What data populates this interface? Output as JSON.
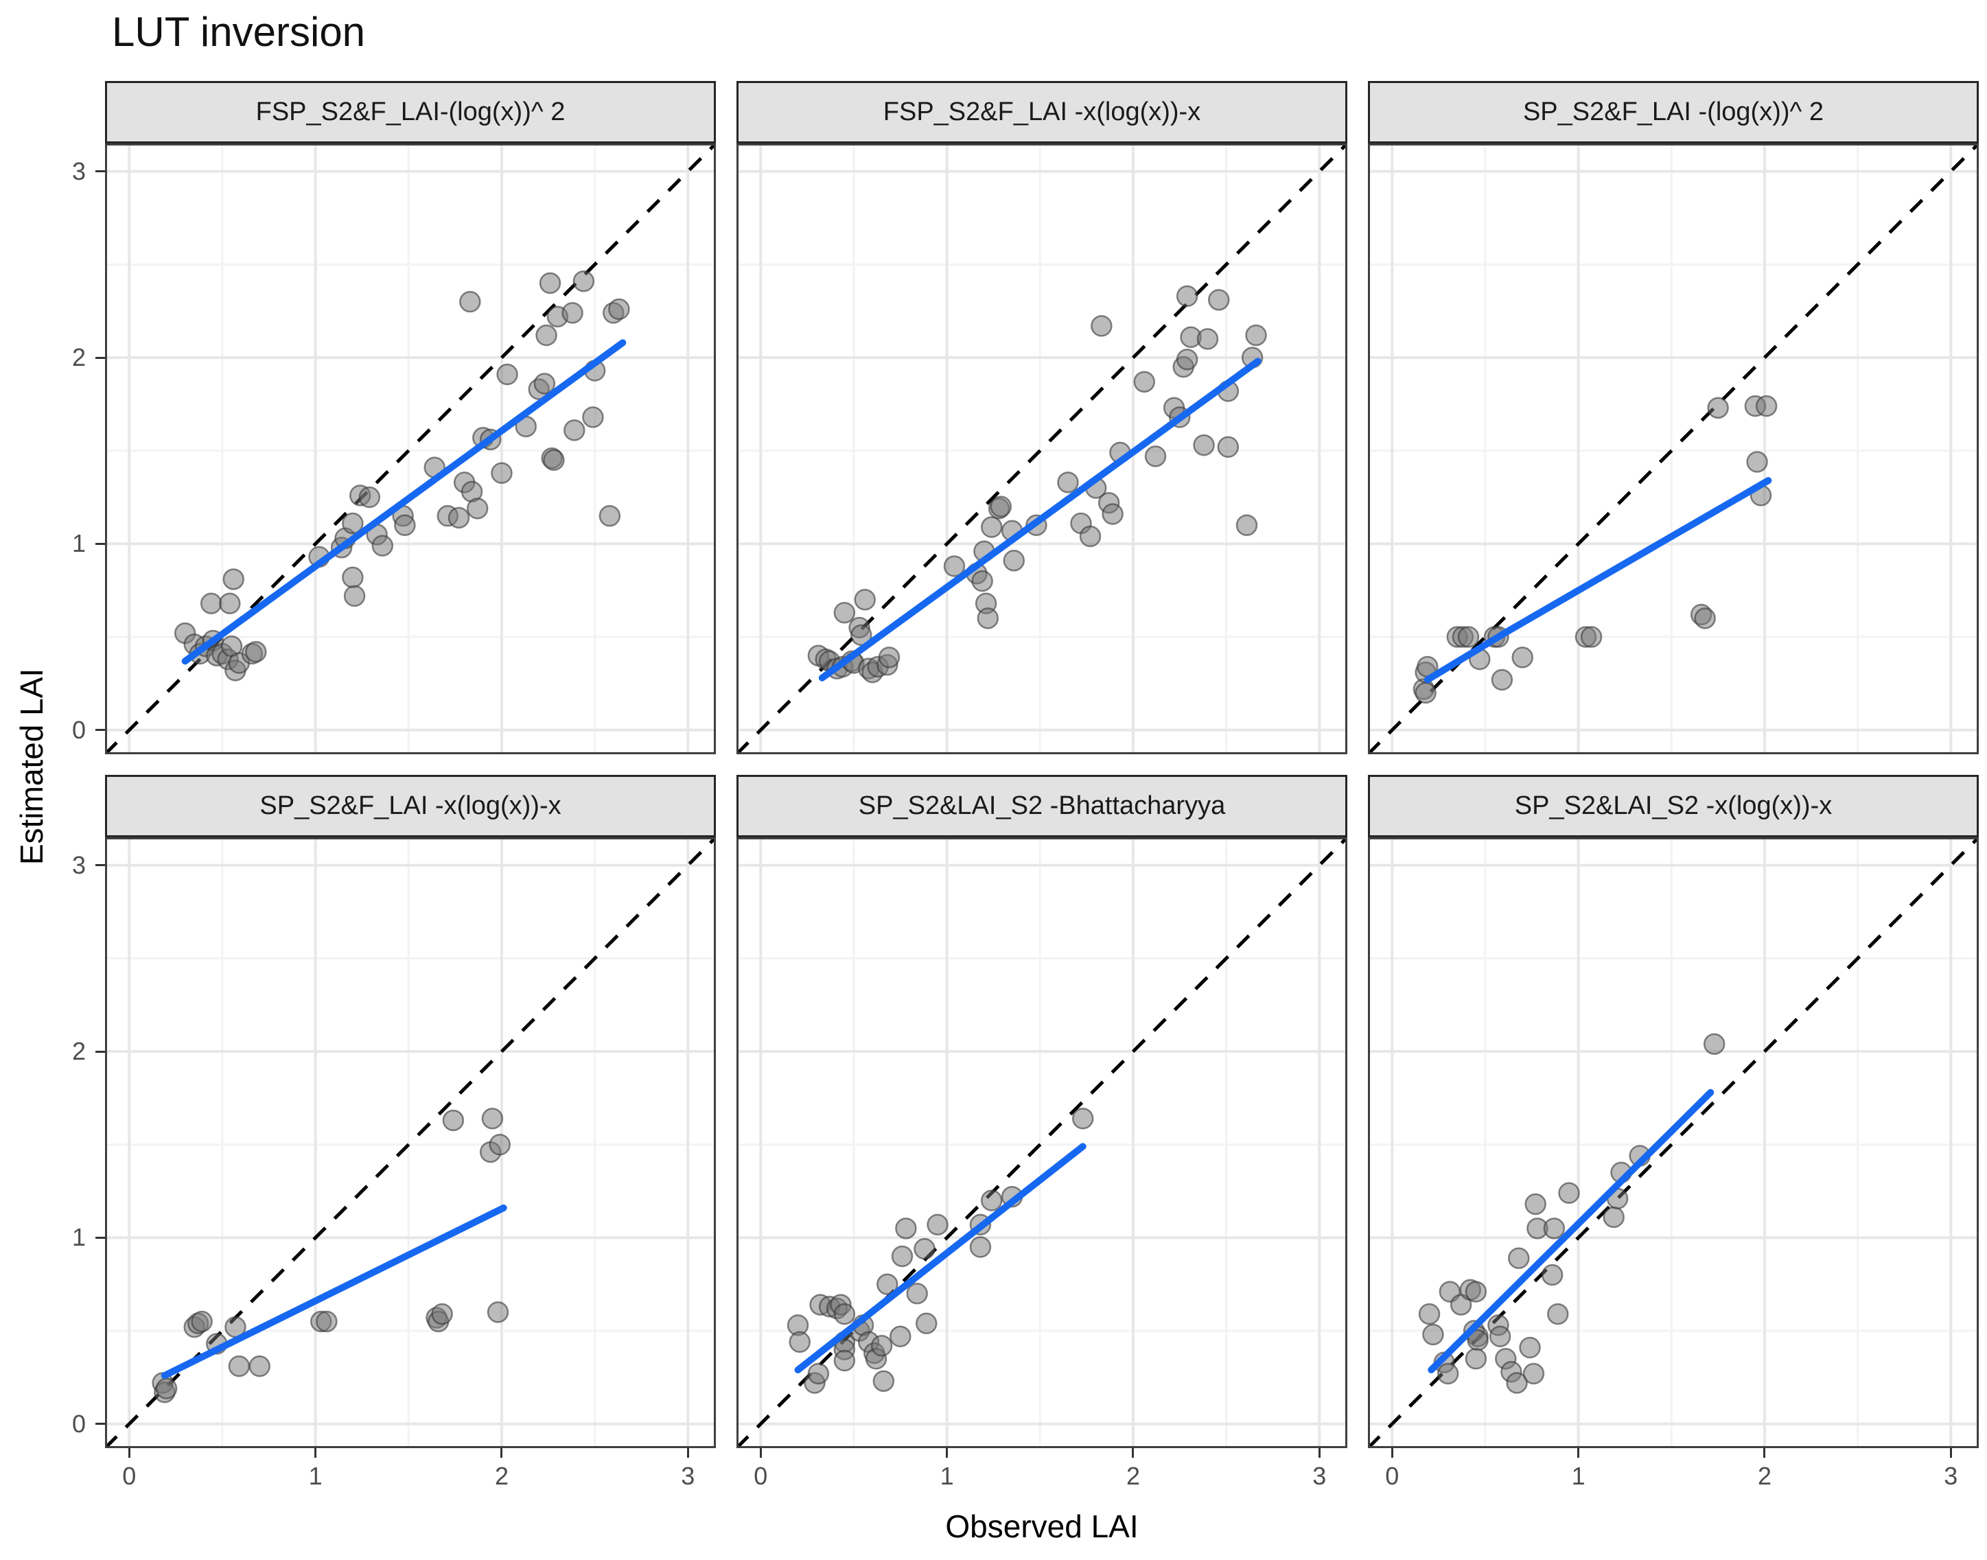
{
  "title": "LUT inversion",
  "axes": {
    "x_label": "Observed LAI",
    "y_label": "Estimated LAI",
    "x_ticks": [
      "0",
      "1",
      "2",
      "3"
    ],
    "y_ticks": [
      "0",
      "1",
      "2",
      "3"
    ],
    "major_breaks": [
      0,
      1,
      2,
      3
    ],
    "minor_breaks": [
      0.5,
      1.5,
      2.5
    ],
    "domain": [
      -0.13,
      3.15
    ]
  },
  "colors": {
    "trend": "#1668f0",
    "identity": "#000000",
    "point_fill": "#787878",
    "point_stroke": "#373737",
    "grid_major": "#e7e7e7",
    "grid_minor": "#f3f3f3",
    "strip_bg": "#e2e2e2",
    "panel_border": "#3f3f3f",
    "axis_text": "#4d4d4d"
  },
  "chart_data": [
    {
      "type": "scatter",
      "title": "FSP_S2&F_LAI-(log(x))^ 2",
      "xlim": [
        0,
        3
      ],
      "ylim": [
        0,
        3
      ],
      "identity_line": true,
      "trend": [
        [
          0.3,
          0.37
        ],
        [
          2.65,
          2.08
        ]
      ],
      "points": [
        [
          0.3,
          0.52
        ],
        [
          0.35,
          0.46
        ],
        [
          0.38,
          0.41
        ],
        [
          0.41,
          0.45
        ],
        [
          0.45,
          0.48
        ],
        [
          0.47,
          0.4
        ],
        [
          0.5,
          0.41
        ],
        [
          0.53,
          0.38
        ],
        [
          0.55,
          0.45
        ],
        [
          0.57,
          0.32
        ],
        [
          0.59,
          0.36
        ],
        [
          0.66,
          0.41
        ],
        [
          0.68,
          0.42
        ],
        [
          0.44,
          0.68
        ],
        [
          0.54,
          0.68
        ],
        [
          0.56,
          0.81
        ],
        [
          1.02,
          0.93
        ],
        [
          1.14,
          0.98
        ],
        [
          1.16,
          1.03
        ],
        [
          1.2,
          1.11
        ],
        [
          1.2,
          0.82
        ],
        [
          1.21,
          0.72
        ],
        [
          1.24,
          1.26
        ],
        [
          1.29,
          1.25
        ],
        [
          1.33,
          1.05
        ],
        [
          1.36,
          0.99
        ],
        [
          1.47,
          1.15
        ],
        [
          1.48,
          1.1
        ],
        [
          1.64,
          1.41
        ],
        [
          1.71,
          1.15
        ],
        [
          1.77,
          1.14
        ],
        [
          1.8,
          1.33
        ],
        [
          1.83,
          2.3
        ],
        [
          1.84,
          1.28
        ],
        [
          1.87,
          1.19
        ],
        [
          1.9,
          1.57
        ],
        [
          1.94,
          1.56
        ],
        [
          2.0,
          1.38
        ],
        [
          2.03,
          1.91
        ],
        [
          2.13,
          1.63
        ],
        [
          2.2,
          1.83
        ],
        [
          2.23,
          1.86
        ],
        [
          2.24,
          2.12
        ],
        [
          2.26,
          2.4
        ],
        [
          2.27,
          1.46
        ],
        [
          2.28,
          1.45
        ],
        [
          2.3,
          2.22
        ],
        [
          2.38,
          2.24
        ],
        [
          2.39,
          1.61
        ],
        [
          2.44,
          2.41
        ],
        [
          2.49,
          1.68
        ],
        [
          2.5,
          1.93
        ],
        [
          2.58,
          1.15
        ],
        [
          2.6,
          2.24
        ],
        [
          2.63,
          2.26
        ]
      ]
    },
    {
      "type": "scatter",
      "title": "FSP_S2&F_LAI -x(log(x))-x",
      "xlim": [
        0,
        3
      ],
      "ylim": [
        0,
        3
      ],
      "identity_line": true,
      "trend": [
        [
          0.33,
          0.28
        ],
        [
          2.67,
          1.98
        ]
      ],
      "points": [
        [
          0.31,
          0.4
        ],
        [
          0.35,
          0.38
        ],
        [
          0.37,
          0.37
        ],
        [
          0.41,
          0.33
        ],
        [
          0.44,
          0.34
        ],
        [
          0.45,
          0.63
        ],
        [
          0.49,
          0.37
        ],
        [
          0.5,
          0.36
        ],
        [
          0.53,
          0.55
        ],
        [
          0.54,
          0.51
        ],
        [
          0.56,
          0.7
        ],
        [
          0.58,
          0.33
        ],
        [
          0.6,
          0.31
        ],
        [
          0.63,
          0.34
        ],
        [
          0.68,
          0.35
        ],
        [
          0.69,
          0.39
        ],
        [
          1.04,
          0.88
        ],
        [
          1.16,
          0.84
        ],
        [
          1.19,
          0.8
        ],
        [
          1.2,
          0.96
        ],
        [
          1.21,
          0.68
        ],
        [
          1.22,
          0.6
        ],
        [
          1.24,
          1.09
        ],
        [
          1.28,
          1.19
        ],
        [
          1.29,
          1.2
        ],
        [
          1.35,
          1.07
        ],
        [
          1.36,
          0.91
        ],
        [
          1.48,
          1.1
        ],
        [
          1.65,
          1.33
        ],
        [
          1.72,
          1.11
        ],
        [
          1.77,
          1.04
        ],
        [
          1.8,
          1.3
        ],
        [
          1.83,
          2.17
        ],
        [
          1.87,
          1.22
        ],
        [
          1.89,
          1.16
        ],
        [
          1.93,
          1.49
        ],
        [
          2.06,
          1.87
        ],
        [
          2.12,
          1.47
        ],
        [
          2.22,
          1.73
        ],
        [
          2.25,
          1.68
        ],
        [
          2.27,
          1.95
        ],
        [
          2.29,
          2.33
        ],
        [
          2.29,
          1.99
        ],
        [
          2.31,
          2.11
        ],
        [
          2.4,
          2.1
        ],
        [
          2.38,
          1.53
        ],
        [
          2.46,
          2.31
        ],
        [
          2.51,
          1.52
        ],
        [
          2.51,
          1.82
        ],
        [
          2.61,
          1.1
        ],
        [
          2.64,
          2.0
        ],
        [
          2.66,
          2.12
        ]
      ]
    },
    {
      "type": "scatter",
      "title": "SP_S2&F_LAI -(log(x))^ 2",
      "xlim": [
        0,
        3
      ],
      "ylim": [
        0,
        3
      ],
      "identity_line": true,
      "trend": [
        [
          0.19,
          0.27
        ],
        [
          0.62,
          0.53
        ],
        [
          2.02,
          1.34
        ]
      ],
      "points": [
        [
          0.17,
          0.22
        ],
        [
          0.18,
          0.2
        ],
        [
          0.18,
          0.31
        ],
        [
          0.19,
          0.34
        ],
        [
          0.35,
          0.5
        ],
        [
          0.38,
          0.5
        ],
        [
          0.41,
          0.5
        ],
        [
          0.47,
          0.38
        ],
        [
          0.55,
          0.5
        ],
        [
          0.57,
          0.5
        ],
        [
          0.59,
          0.27
        ],
        [
          0.7,
          0.39
        ],
        [
          1.04,
          0.5
        ],
        [
          1.07,
          0.5
        ],
        [
          1.66,
          0.62
        ],
        [
          1.68,
          0.6
        ],
        [
          1.75,
          1.73
        ],
        [
          1.95,
          1.74
        ],
        [
          2.01,
          1.74
        ],
        [
          1.96,
          1.44
        ],
        [
          1.98,
          1.26
        ]
      ]
    },
    {
      "type": "scatter",
      "title": "SP_S2&F_LAI -x(log(x))-x",
      "xlim": [
        0,
        3
      ],
      "ylim": [
        0,
        3
      ],
      "identity_line": true,
      "trend": [
        [
          0.19,
          0.26
        ],
        [
          2.01,
          1.16
        ]
      ],
      "points": [
        [
          0.18,
          0.22
        ],
        [
          0.19,
          0.17
        ],
        [
          0.2,
          0.19
        ],
        [
          0.35,
          0.52
        ],
        [
          0.37,
          0.54
        ],
        [
          0.39,
          0.55
        ],
        [
          0.47,
          0.43
        ],
        [
          0.57,
          0.52
        ],
        [
          0.59,
          0.31
        ],
        [
          0.7,
          0.31
        ],
        [
          1.03,
          0.55
        ],
        [
          1.06,
          0.55
        ],
        [
          1.65,
          0.57
        ],
        [
          1.66,
          0.55
        ],
        [
          1.68,
          0.59
        ],
        [
          1.74,
          1.63
        ],
        [
          1.95,
          1.64
        ],
        [
          1.94,
          1.46
        ],
        [
          1.99,
          1.5
        ],
        [
          1.98,
          0.6
        ]
      ]
    },
    {
      "type": "scatter",
      "title": "SP_S2&LAI_S2 -Bhattacharyya",
      "xlim": [
        0,
        3
      ],
      "ylim": [
        0,
        3
      ],
      "identity_line": true,
      "trend": [
        [
          0.2,
          0.29
        ],
        [
          1.73,
          1.49
        ]
      ],
      "points": [
        [
          0.2,
          0.53
        ],
        [
          0.21,
          0.44
        ],
        [
          0.29,
          0.22
        ],
        [
          0.31,
          0.27
        ],
        [
          0.32,
          0.64
        ],
        [
          0.37,
          0.63
        ],
        [
          0.41,
          0.62
        ],
        [
          0.43,
          0.64
        ],
        [
          0.45,
          0.59
        ],
        [
          0.45,
          0.44
        ],
        [
          0.45,
          0.4
        ],
        [
          0.45,
          0.34
        ],
        [
          0.53,
          0.5
        ],
        [
          0.55,
          0.53
        ],
        [
          0.58,
          0.44
        ],
        [
          0.61,
          0.38
        ],
        [
          0.62,
          0.35
        ],
        [
          0.65,
          0.42
        ],
        [
          0.66,
          0.23
        ],
        [
          0.68,
          0.75
        ],
        [
          0.75,
          0.47
        ],
        [
          0.76,
          0.9
        ],
        [
          0.78,
          1.05
        ],
        [
          0.84,
          0.7
        ],
        [
          0.88,
          0.94
        ],
        [
          0.89,
          0.54
        ],
        [
          0.95,
          1.07
        ],
        [
          1.18,
          0.95
        ],
        [
          1.18,
          1.07
        ],
        [
          1.24,
          1.2
        ],
        [
          1.35,
          1.22
        ],
        [
          1.73,
          1.64
        ]
      ]
    },
    {
      "type": "scatter",
      "title": "SP_S2&LAI_S2 -x(log(x))-x",
      "xlim": [
        0,
        3
      ],
      "ylim": [
        0,
        3
      ],
      "identity_line": true,
      "trend": [
        [
          0.21,
          0.29
        ],
        [
          1.71,
          1.78
        ]
      ],
      "points": [
        [
          0.2,
          0.59
        ],
        [
          0.22,
          0.48
        ],
        [
          0.28,
          0.33
        ],
        [
          0.3,
          0.27
        ],
        [
          0.31,
          0.71
        ],
        [
          0.37,
          0.64
        ],
        [
          0.42,
          0.72
        ],
        [
          0.45,
          0.71
        ],
        [
          0.44,
          0.5
        ],
        [
          0.46,
          0.47
        ],
        [
          0.46,
          0.45
        ],
        [
          0.45,
          0.35
        ],
        [
          0.57,
          0.53
        ],
        [
          0.58,
          0.47
        ],
        [
          0.61,
          0.35
        ],
        [
          0.64,
          0.28
        ],
        [
          0.67,
          0.22
        ],
        [
          0.68,
          0.89
        ],
        [
          0.74,
          0.41
        ],
        [
          0.76,
          0.27
        ],
        [
          0.77,
          1.18
        ],
        [
          0.78,
          1.05
        ],
        [
          0.87,
          1.05
        ],
        [
          0.86,
          0.8
        ],
        [
          0.89,
          0.59
        ],
        [
          0.95,
          1.24
        ],
        [
          1.19,
          1.11
        ],
        [
          1.21,
          1.21
        ],
        [
          1.23,
          1.35
        ],
        [
          1.33,
          1.44
        ],
        [
          1.73,
          2.04
        ]
      ]
    }
  ]
}
